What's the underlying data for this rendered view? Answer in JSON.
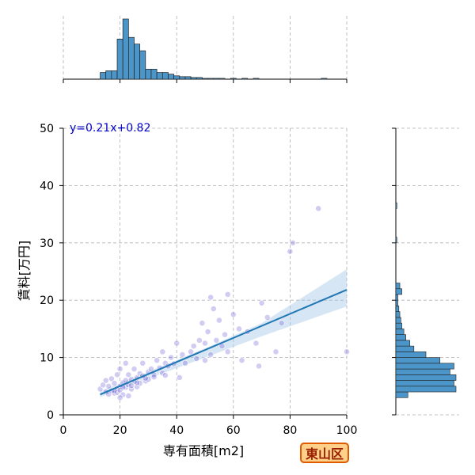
{
  "chart_data": {
    "type": "scatter",
    "xlabel": "専有面積[m2]",
    "ylabel": "賃料[万円]",
    "xlim": [
      0,
      100
    ],
    "ylim": [
      0,
      50
    ],
    "xticks": [
      "0",
      "20",
      "40",
      "60",
      "80",
      "100"
    ],
    "yticks": [
      "0",
      "10",
      "20",
      "30",
      "40",
      "50"
    ],
    "grid": true,
    "annotation": "y=0.21x+0.82",
    "badge": "東山区",
    "colors": {
      "points": "#5b4ccf",
      "fit": "#1f77b4",
      "ci": "#a6c8e6",
      "hist": "#4c95c8",
      "grid": "#b0b0b0",
      "badge_border": "#e05a00",
      "badge_fill": "#ffd08a"
    },
    "regression": {
      "slope": 0.21,
      "intercept": 0.82,
      "x_range": [
        13,
        100
      ]
    },
    "ci_band": {
      "x": [
        13,
        30,
        50,
        70,
        100
      ],
      "lower": [
        3.1,
        6.3,
        10.0,
        13.7,
        18.9
      ],
      "upper": [
        4.2,
        7.5,
        11.6,
        16.0,
        25.4
      ]
    },
    "points": [
      [
        13,
        4.5
      ],
      [
        14,
        5.2
      ],
      [
        15,
        4.0
      ],
      [
        15,
        6.0
      ],
      [
        16,
        3.6
      ],
      [
        16,
        5.0
      ],
      [
        17,
        4.2
      ],
      [
        17,
        6.3
      ],
      [
        18,
        3.8
      ],
      [
        18,
        5.5
      ],
      [
        19,
        4.6
      ],
      [
        19,
        7.0
      ],
      [
        19,
        3.9
      ],
      [
        20,
        5.0
      ],
      [
        20,
        8.0
      ],
      [
        20,
        4.3
      ],
      [
        21,
        5.6
      ],
      [
        21,
        3.5
      ],
      [
        22,
        6.0
      ],
      [
        22,
        4.8
      ],
      [
        22,
        9.0
      ],
      [
        23,
        5.2
      ],
      [
        23,
        7.0
      ],
      [
        23,
        3.3
      ],
      [
        24,
        6.2
      ],
      [
        24,
        4.5
      ],
      [
        25,
        5.8
      ],
      [
        25,
        8.0
      ],
      [
        26,
        6.5
      ],
      [
        26,
        4.9
      ],
      [
        27,
        7.2
      ],
      [
        27,
        5.5
      ],
      [
        28,
        6.8
      ],
      [
        28,
        9.0
      ],
      [
        29,
        5.9
      ],
      [
        30,
        7.5
      ],
      [
        30,
        6.2
      ],
      [
        31,
        8.0
      ],
      [
        32,
        7.0
      ],
      [
        33,
        9.5
      ],
      [
        34,
        8.2
      ],
      [
        35,
        7.3
      ],
      [
        35,
        11.0
      ],
      [
        36,
        9.0
      ],
      [
        37,
        8.5
      ],
      [
        38,
        10.0
      ],
      [
        39,
        8.9
      ],
      [
        40,
        12.5
      ],
      [
        41,
        6.5
      ],
      [
        42,
        10.5
      ],
      [
        43,
        9.0
      ],
      [
        45,
        11.0
      ],
      [
        46,
        12.0
      ],
      [
        47,
        9.8
      ],
      [
        48,
        13.0
      ],
      [
        49,
        16.0
      ],
      [
        50,
        12.5
      ],
      [
        50,
        9.5
      ],
      [
        51,
        14.5
      ],
      [
        52,
        10.5
      ],
      [
        52,
        20.5
      ],
      [
        53,
        18.5
      ],
      [
        54,
        13.0
      ],
      [
        55,
        16.5
      ],
      [
        56,
        12.0
      ],
      [
        57,
        14.0
      ],
      [
        58,
        21.0
      ],
      [
        58,
        11.0
      ],
      [
        60,
        17.5
      ],
      [
        62,
        15.0
      ],
      [
        63,
        9.5
      ],
      [
        65,
        14.5
      ],
      [
        68,
        12.5
      ],
      [
        69,
        8.5
      ],
      [
        70,
        19.5
      ],
      [
        72,
        17.0
      ],
      [
        75,
        11.0
      ],
      [
        77,
        16.0
      ],
      [
        80,
        28.5
      ],
      [
        81,
        30.0
      ],
      [
        90,
        36.0
      ],
      [
        100,
        11.0
      ],
      [
        18,
        4.2
      ],
      [
        21,
        4.8
      ],
      [
        24,
        5.1
      ],
      [
        26,
        5.6
      ],
      [
        29,
        6.4
      ],
      [
        32,
        6.6
      ],
      [
        36,
        6.9
      ],
      [
        20,
        3.0
      ]
    ],
    "top_hist": {
      "bin_edges": [
        13,
        15,
        17,
        19,
        21,
        23,
        25,
        27,
        29,
        31,
        33,
        35,
        37,
        39,
        41,
        43,
        45,
        47,
        49,
        51,
        53,
        55,
        57,
        59,
        61,
        63,
        65,
        67,
        69,
        71,
        73,
        75,
        77,
        79,
        81,
        83,
        85,
        87,
        89,
        91,
        93,
        95,
        97,
        99,
        101
      ],
      "counts": [
        8,
        10,
        10,
        48,
        72,
        50,
        42,
        34,
        12,
        12,
        8,
        8,
        6,
        4,
        3,
        3,
        2,
        2,
        1,
        1,
        1,
        1,
        0,
        1,
        0,
        1,
        0,
        1,
        0,
        0,
        0,
        0,
        0,
        0,
        0,
        0,
        0,
        0,
        0,
        1,
        0,
        0,
        0,
        0
      ]
    },
    "right_hist": {
      "bin_edges": [
        3,
        4,
        5,
        6,
        7,
        8,
        9,
        10,
        11,
        12,
        13,
        14,
        15,
        16,
        17,
        18,
        19,
        20,
        21,
        22,
        23,
        24,
        25,
        26,
        27,
        28,
        29,
        30,
        31,
        32,
        33,
        34,
        35,
        36,
        37
      ],
      "counts": [
        12,
        60,
        58,
        60,
        54,
        58,
        44,
        30,
        18,
        14,
        10,
        8,
        6,
        5,
        4,
        3,
        2,
        2,
        6,
        4,
        0,
        0,
        0,
        0,
        0,
        0,
        0,
        1,
        0,
        0,
        0,
        0,
        0,
        1
      ]
    }
  }
}
